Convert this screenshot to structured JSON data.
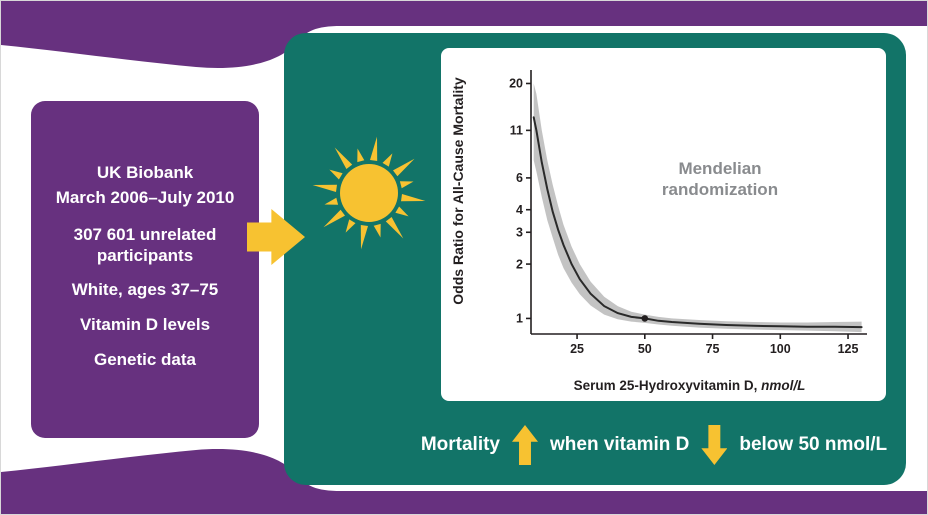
{
  "colors": {
    "purple": "#67317f",
    "teal": "#127468",
    "yellow": "#F7C231",
    "band": "#bdbdbd",
    "line": "#2a2a2a",
    "axis": "#231f20",
    "annotation_gray": "#898b8e"
  },
  "study_box": {
    "lines": [
      "UK Biobank",
      "March 2006–July 2010",
      "307 601 unrelated participants",
      "White, ages 37–75",
      "Vitamin D levels",
      "Genetic data"
    ]
  },
  "annotation": "Mendelian randomization",
  "caption": {
    "part1": "Mortality",
    "part2": "when vitamin D",
    "part3": "below 50 nmol/L"
  },
  "chart_data": {
    "type": "line",
    "title": "",
    "ylabel": "Odds Ratio for All-Cause Mortality",
    "xlabel": "Serum 25-Hydroxyvitamin D, nmol/L",
    "xlabel_main": "Serum 25-Hydroxyvitamin D,",
    "xlabel_unit": "nmol/L",
    "y_scale": "log",
    "grid": false,
    "legend": "none",
    "xlim": [
      8,
      132
    ],
    "ylim": [
      0.82,
      22
    ],
    "x_ticks": [
      25,
      50,
      75,
      100,
      125
    ],
    "y_ticks": [
      1,
      2,
      3,
      4,
      6,
      11,
      20
    ],
    "series": [
      {
        "name": "odds-ratio-curve",
        "x": [
          9,
          10,
          12,
          14,
          16,
          18,
          20,
          23,
          26,
          30,
          35,
          40,
          45,
          50,
          55,
          60,
          70,
          80,
          90,
          100,
          110,
          120,
          130
        ],
        "y": [
          13,
          11,
          7.3,
          5.2,
          3.9,
          3.1,
          2.55,
          2.0,
          1.65,
          1.37,
          1.17,
          1.07,
          1.02,
          1.0,
          0.97,
          0.955,
          0.935,
          0.92,
          0.91,
          0.905,
          0.9,
          0.9,
          0.895
        ]
      }
    ],
    "band": {
      "name": "confidence-interval",
      "x": [
        9,
        10,
        12,
        14,
        16,
        18,
        20,
        23,
        26,
        30,
        35,
        40,
        45,
        50,
        55,
        60,
        70,
        80,
        90,
        100,
        110,
        120,
        130
      ],
      "upper": [
        20,
        17.5,
        11,
        7.5,
        5.5,
        4.2,
        3.3,
        2.5,
        2.0,
        1.6,
        1.32,
        1.17,
        1.09,
        1.05,
        1.02,
        1.0,
        0.98,
        0.965,
        0.955,
        0.95,
        0.95,
        0.955,
        0.96
      ],
      "lower": [
        7.5,
        6.5,
        4.7,
        3.5,
        2.8,
        2.25,
        1.9,
        1.58,
        1.36,
        1.18,
        1.05,
        0.99,
        0.96,
        0.945,
        0.925,
        0.91,
        0.89,
        0.877,
        0.868,
        0.862,
        0.856,
        0.85,
        0.84
      ]
    },
    "marker": {
      "x": 50,
      "y": 1.0
    }
  }
}
